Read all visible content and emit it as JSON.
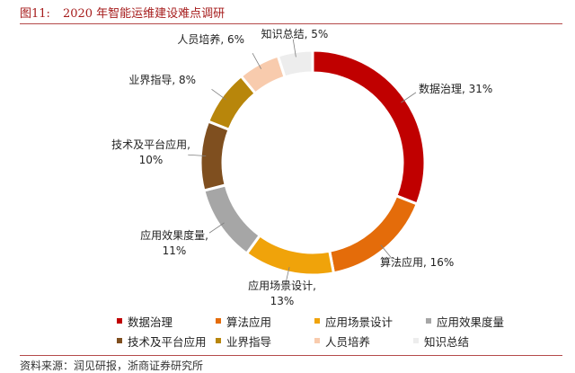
{
  "figure": {
    "number": "图11:",
    "title": "2020 年智能运维建设难点调研",
    "source": "资料来源：润见研报，浙商证券研究所"
  },
  "chart_data": {
    "type": "pie",
    "donut": true,
    "legend_position": "bottom",
    "slices": [
      {
        "name": "数据治理",
        "value": 31,
        "label": "数据治理, 31%",
        "color": "#c00000"
      },
      {
        "name": "算法应用",
        "value": 16,
        "label": "算法应用, 16%",
        "color": "#e46c0a"
      },
      {
        "name": "应用场景设计",
        "value": 13,
        "label": "应用场景设计,\n13%",
        "color": "#f0a30a"
      },
      {
        "name": "应用效果度量",
        "value": 11,
        "label": "应用效果度量,\n11%",
        "color": "#a6a6a6"
      },
      {
        "name": "技术及平台应用",
        "value": 10,
        "label": "技术及平台应用,\n10%",
        "color": "#7f4f1f"
      },
      {
        "name": "业界指导",
        "value": 8,
        "label": "业界指导, 8%",
        "color": "#b8860b"
      },
      {
        "name": "人员培养",
        "value": 6,
        "label": "人员培养, 6%",
        "color": "#f8cbad"
      },
      {
        "name": "知识总结",
        "value": 5,
        "label": "知识总结, 5%",
        "color": "#ededed"
      }
    ]
  }
}
